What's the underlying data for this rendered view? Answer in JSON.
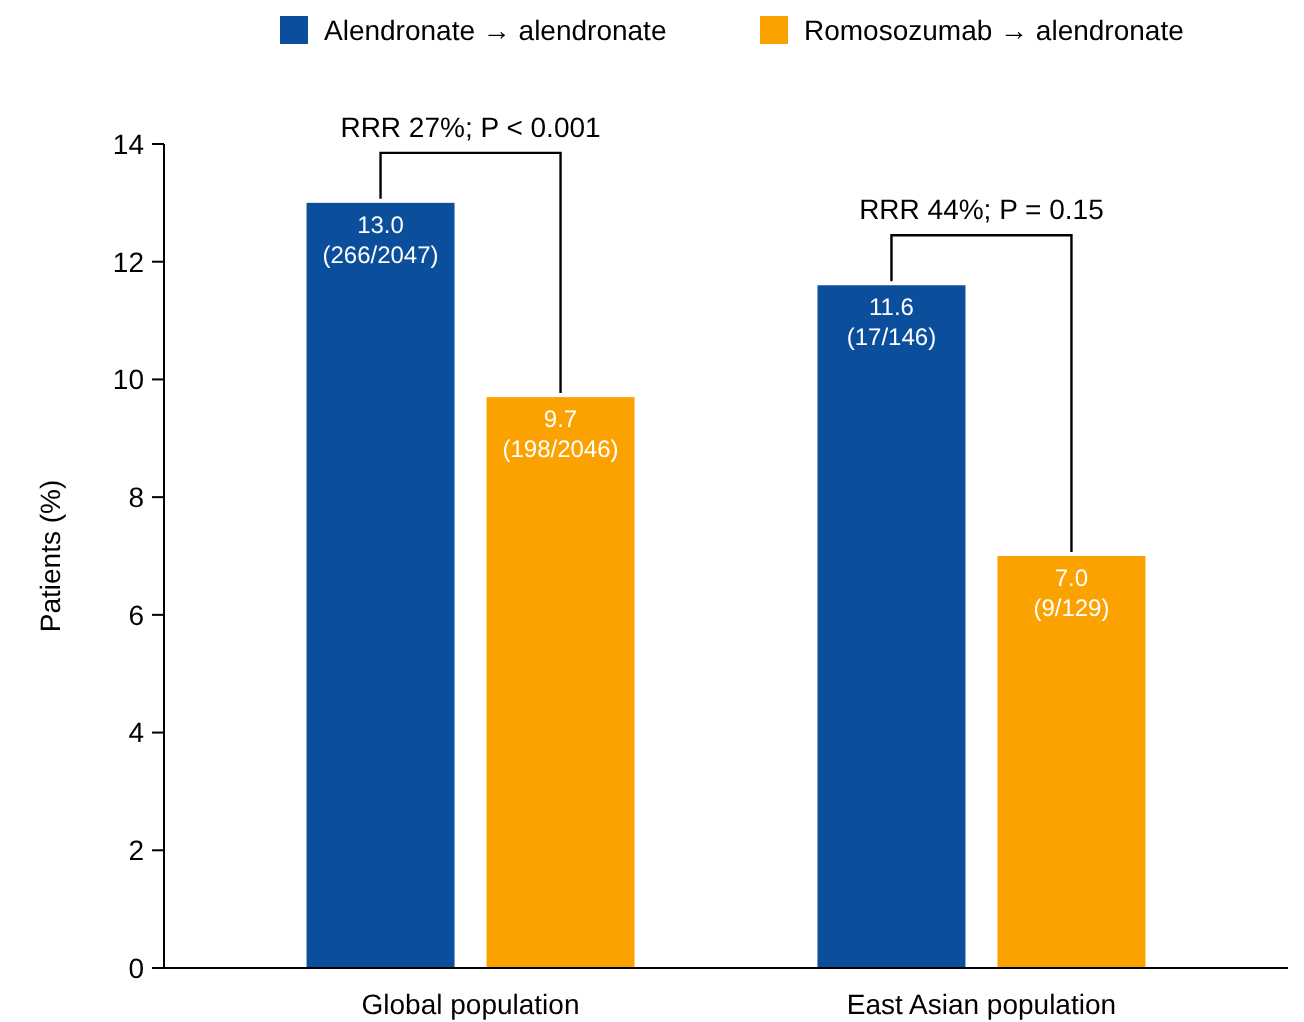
{
  "chart_data": {
    "type": "bar",
    "ylabel": "Patients (%)",
    "categories": [
      "Global population",
      "East Asian population"
    ],
    "series": [
      {
        "name": "Alendronate → alendronate",
        "color": "#0b4f9c",
        "values": [
          13.0,
          11.6
        ],
        "value_labels": [
          "13.0\n(266/2047)",
          "11.6\n(17/146)"
        ]
      },
      {
        "name": "Romosozumab → alendronate",
        "color": "#fba100",
        "values": [
          9.7,
          7.0
        ],
        "value_labels": [
          "9.7\n(198/2046)",
          "7.0\n(9/129)"
        ]
      }
    ],
    "ylim": [
      0,
      14
    ],
    "yticks": [
      0,
      2,
      4,
      6,
      8,
      10,
      12,
      14
    ],
    "grid": false,
    "legend": "top",
    "annotations": [
      "RRR 27%; P < 0.001",
      "RRR 44%; P = 0.15"
    ]
  }
}
